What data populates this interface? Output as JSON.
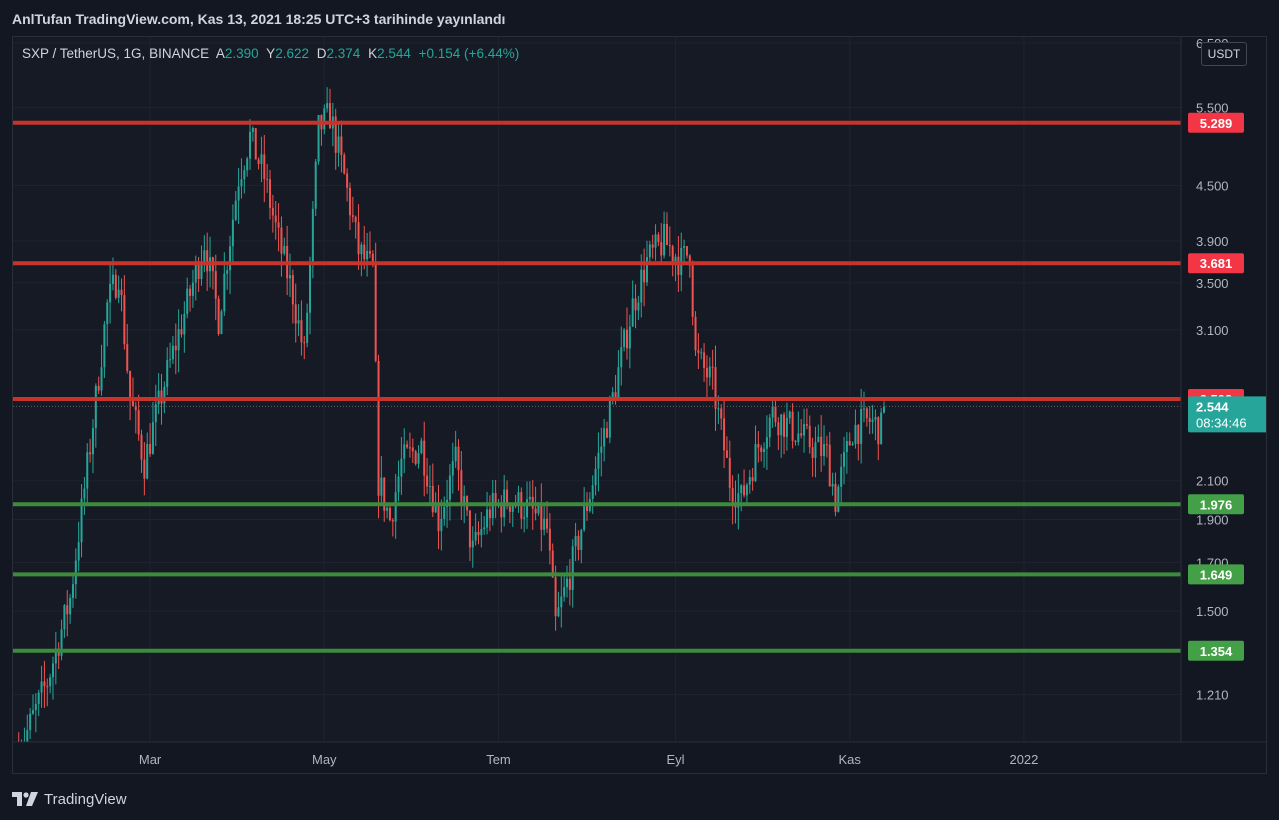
{
  "header": {
    "published": "AnlTufan TradingView.com, Kas 13, 2021 18:25 UTC+3 tarihinde yayınlandı"
  },
  "legend": {
    "symbol": "SXP / TetherUS, 1G, BINANCE",
    "o_label": "A",
    "o_value": "2.390",
    "h_label": "Y",
    "h_value": "2.622",
    "l_label": "D",
    "l_value": "2.374",
    "c_label": "K",
    "c_value": "2.544",
    "change": "+0.154 (+6.44%)"
  },
  "currency": "USDT",
  "footer": {
    "brand": "TradingView"
  },
  "colors": {
    "up": "#26a69a",
    "down": "#ef5350",
    "resistance": "#c8342c",
    "support": "#3c8c3c",
    "background": "#161a25",
    "grid": "#1f2330"
  },
  "chart_data": {
    "type": "candlestick",
    "title": "SXP / TetherUS, 1G, BINANCE",
    "y_scale": "log",
    "ylim": [
      1.07,
      6.6
    ],
    "y_ticks": [
      "1.210",
      "1.500",
      "1.700",
      "1.900",
      "2.100",
      "3.100",
      "3.500",
      "3.900",
      "4.500",
      "5.500",
      "6.500"
    ],
    "x_ticks": [
      "Mar",
      "May",
      "Tem",
      "Eyl",
      "Kas",
      "2022"
    ],
    "x_range": [
      "2021-01-12",
      "2022-02-25"
    ],
    "x_tick_dates": [
      "2021-03-01",
      "2021-05-01",
      "2021-07-01",
      "2021-09-01",
      "2021-11-01",
      "2022-01-01"
    ],
    "horizontal_lines": [
      {
        "value": 5.289,
        "label": "5.289",
        "kind": "resistance"
      },
      {
        "value": 3.681,
        "label": "3.681",
        "kind": "resistance"
      },
      {
        "value": 2.593,
        "label": "2.593",
        "kind": "resistance"
      },
      {
        "value": 1.976,
        "label": "1.976",
        "kind": "support"
      },
      {
        "value": 1.649,
        "label": "1.649",
        "kind": "support"
      },
      {
        "value": 1.354,
        "label": "1.354",
        "kind": "support"
      }
    ],
    "last_price": {
      "value": 2.544,
      "label": "2.544",
      "countdown": "08:34:46"
    },
    "close_path": [
      [
        "2021-01-14",
        1.04
      ],
      [
        "2021-01-24",
        1.25
      ],
      [
        "2021-02-01",
        1.55
      ],
      [
        "2021-02-08",
        2.3
      ],
      [
        "2021-02-14",
        3.3
      ],
      [
        "2021-02-18",
        3.6
      ],
      [
        "2021-02-22",
        2.6
      ],
      [
        "2021-02-27",
        2.2
      ],
      [
        "2021-03-06",
        2.7
      ],
      [
        "2021-03-15",
        3.4
      ],
      [
        "2021-03-20",
        3.9
      ],
      [
        "2021-03-25",
        3.2
      ],
      [
        "2021-04-01",
        4.6
      ],
      [
        "2021-04-05",
        5.1
      ],
      [
        "2021-04-10",
        4.6
      ],
      [
        "2021-04-15",
        3.9
      ],
      [
        "2021-04-20",
        3.4
      ],
      [
        "2021-04-24",
        2.9
      ],
      [
        "2021-04-29",
        5.2
      ],
      [
        "2021-05-03",
        5.4
      ],
      [
        "2021-05-08",
        4.6
      ],
      [
        "2021-05-13",
        3.8
      ],
      [
        "2021-05-18",
        3.6
      ],
      [
        "2021-05-20",
        2.1
      ],
      [
        "2021-05-24",
        1.9
      ],
      [
        "2021-05-28",
        2.2
      ],
      [
        "2021-06-04",
        2.3
      ],
      [
        "2021-06-10",
        1.9
      ],
      [
        "2021-06-16",
        2.2
      ],
      [
        "2021-06-22",
        1.75
      ],
      [
        "2021-06-28",
        1.95
      ],
      [
        "2021-07-05",
        2.0
      ],
      [
        "2021-07-12",
        1.95
      ],
      [
        "2021-07-18",
        1.85
      ],
      [
        "2021-07-21",
        1.45
      ],
      [
        "2021-07-27",
        1.7
      ],
      [
        "2021-08-03",
        2.1
      ],
      [
        "2021-08-10",
        2.6
      ],
      [
        "2021-08-17",
        3.3
      ],
      [
        "2021-08-22",
        3.7
      ],
      [
        "2021-08-28",
        3.9
      ],
      [
        "2021-09-03",
        3.7
      ],
      [
        "2021-09-06",
        3.8
      ],
      [
        "2021-09-08",
        2.9
      ],
      [
        "2021-09-14",
        2.7
      ],
      [
        "2021-09-20",
        2.1
      ],
      [
        "2021-09-24",
        2.0
      ],
      [
        "2021-09-30",
        2.3
      ],
      [
        "2021-10-05",
        2.5
      ],
      [
        "2021-10-12",
        2.4
      ],
      [
        "2021-10-19",
        2.3
      ],
      [
        "2021-10-24",
        2.25
      ],
      [
        "2021-10-27",
        2.0
      ],
      [
        "2021-11-02",
        2.4
      ],
      [
        "2021-11-08",
        2.45
      ],
      [
        "2021-11-12",
        2.4
      ],
      [
        "2021-11-13",
        2.544
      ]
    ]
  }
}
